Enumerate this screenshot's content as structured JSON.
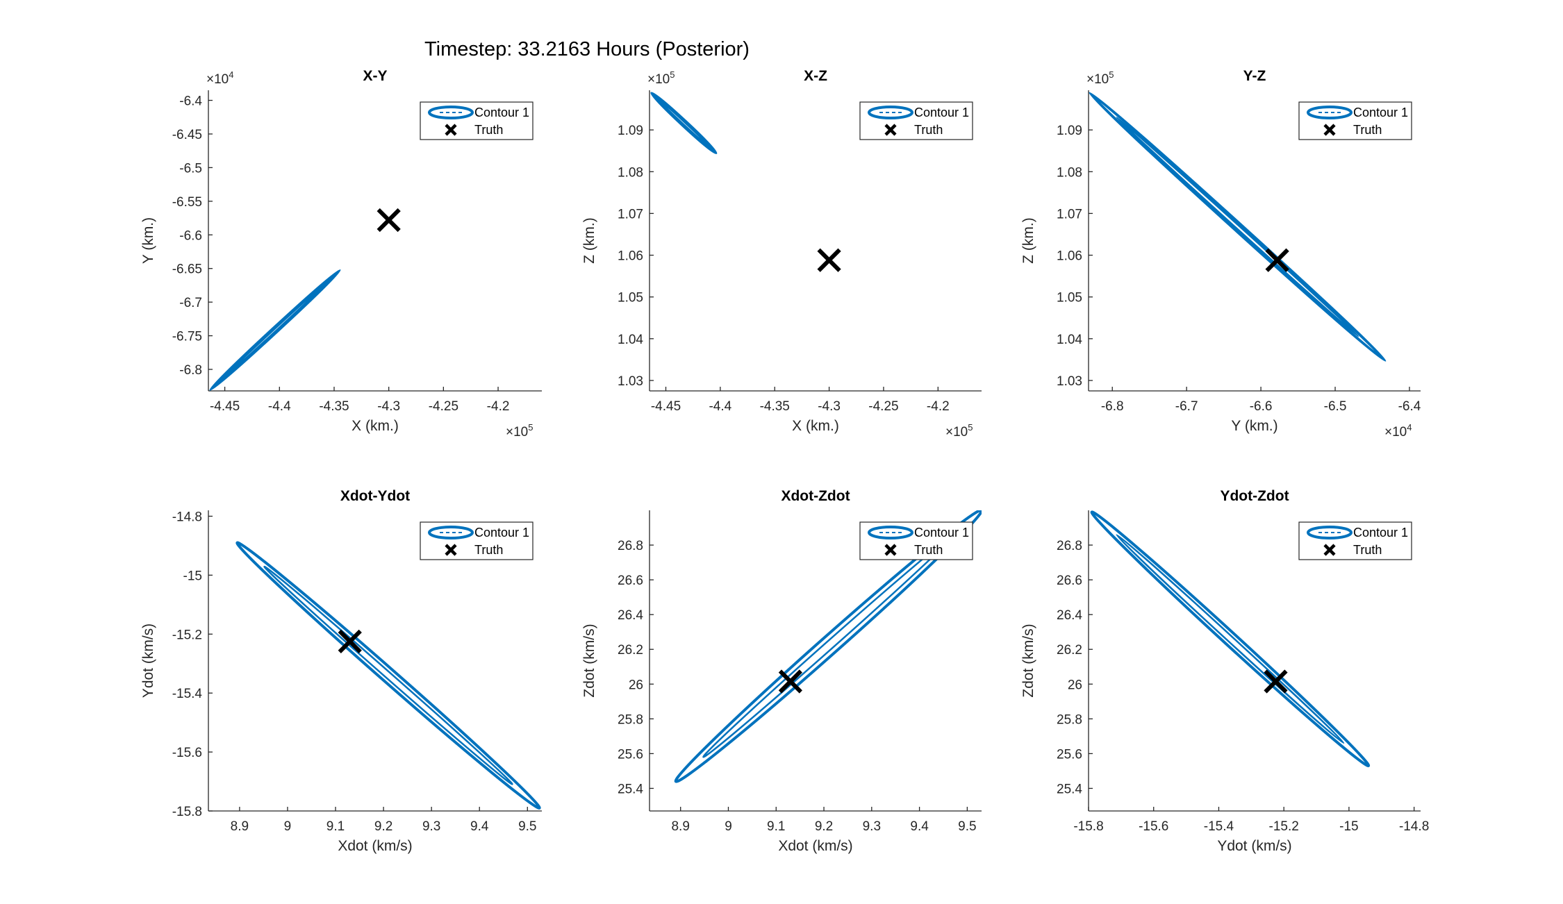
{
  "figure": {
    "title": "Timestep: 33.2163 Hours (Posterior)"
  },
  "legend": {
    "contour_label": "Contour 1",
    "truth_label": "Truth"
  },
  "colors": {
    "contour": "#0072BD",
    "truth": "#000000",
    "axes": "#262626"
  },
  "chart_data": [
    {
      "type": "line",
      "title": "X-Y",
      "xlabel": "X (km.)",
      "ylabel": "Y (km.)",
      "xlim": [
        -446500,
        -416000
      ],
      "ylim": [
        -68320,
        -63850
      ],
      "x_ticks": [
        -445000,
        -440000,
        -435000,
        -430000,
        -425000,
        -420000
      ],
      "x_tick_labels": [
        "-4.45",
        "-4.4",
        "-4.35",
        "-4.3",
        "-4.25",
        "-4.2"
      ],
      "y_ticks": [
        -68000,
        -67500,
        -67000,
        -66500,
        -66000,
        -65500,
        -65000,
        -64500,
        -64000
      ],
      "y_tick_labels": [
        "-6.8",
        "-6.75",
        "-6.7",
        "-6.65",
        "-6.6",
        "-6.55",
        "-6.5",
        "-6.45",
        "-6.4"
      ],
      "x_exponent": "×10",
      "x_exponent_power": "5",
      "y_exponent": "×10",
      "y_exponent_power": "4",
      "grid": false,
      "legend_position": "top-right",
      "series": [
        {
          "name": "Contour 1",
          "x": [
            -446300,
            -434500
          ],
          "y": [
            -68300,
            -66530
          ],
          "half_width": 55
        },
        {
          "name": "Truth",
          "x": [
            -430000
          ],
          "y": [
            -65780
          ]
        }
      ]
    },
    {
      "type": "line",
      "title": "X-Z",
      "xlabel": "X (km.)",
      "ylabel": "Z (km.)",
      "xlim": [
        -446500,
        -416000
      ],
      "ylim": [
        102750,
        109950
      ],
      "x_ticks": [
        -445000,
        -440000,
        -435000,
        -430000,
        -425000,
        -420000
      ],
      "x_tick_labels": [
        "-4.45",
        "-4.4",
        "-4.35",
        "-4.3",
        "-4.25",
        "-4.2"
      ],
      "y_ticks": [
        103000,
        104000,
        105000,
        106000,
        107000,
        108000,
        109000
      ],
      "y_tick_labels": [
        "1.03",
        "1.04",
        "1.05",
        "1.06",
        "1.07",
        "1.08",
        "1.09"
      ],
      "x_exponent": "×10",
      "x_exponent_power": "5",
      "y_exponent": "×10",
      "y_exponent_power": "5",
      "grid": false,
      "legend_position": "top-right",
      "series": [
        {
          "name": "Contour 1",
          "x": [
            -446300,
            -440400
          ],
          "y": [
            109880,
            108450
          ],
          "half_width": 45
        },
        {
          "name": "Truth",
          "x": [
            -430000
          ],
          "y": [
            105880
          ]
        }
      ]
    },
    {
      "type": "line",
      "title": "Y-Z",
      "xlabel": "Y (km.)",
      "ylabel": "Z (km.)",
      "xlim": [
        -68320,
        -63850
      ],
      "ylim": [
        102750,
        109950
      ],
      "x_ticks": [
        -68000,
        -67000,
        -66000,
        -65000,
        -64000
      ],
      "x_tick_labels": [
        "-6.8",
        "-6.7",
        "-6.6",
        "-6.5",
        "-6.4"
      ],
      "y_ticks": [
        103000,
        104000,
        105000,
        106000,
        107000,
        108000,
        109000
      ],
      "y_tick_labels": [
        "1.03",
        "1.04",
        "1.05",
        "1.06",
        "1.07",
        "1.08",
        "1.09"
      ],
      "x_exponent": "×10",
      "x_exponent_power": "4",
      "y_exponent": "×10",
      "y_exponent_power": "5",
      "grid": false,
      "legend_position": "top-right",
      "series": [
        {
          "name": "Contour 1",
          "x": [
            -68300,
            -64330
          ],
          "y": [
            109880,
            103480
          ],
          "half_width": 95
        },
        {
          "name": "Truth",
          "x": [
            -65780
          ],
          "y": [
            105880
          ]
        }
      ]
    },
    {
      "type": "line",
      "title": "Xdot-Ydot",
      "xlabel": "Xdot (km/s)",
      "ylabel": "Ydot (km/s)",
      "xlim": [
        8.835,
        9.53
      ],
      "ylim": [
        -15.8,
        -14.78
      ],
      "x_ticks": [
        8.9,
        9.0,
        9.1,
        9.2,
        9.3,
        9.4,
        9.5
      ],
      "x_tick_labels": [
        "8.9",
        "9",
        "9.1",
        "9.2",
        "9.3",
        "9.4",
        "9.5"
      ],
      "y_ticks": [
        -15.8,
        -15.6,
        -15.4,
        -15.2,
        -15.0,
        -14.8
      ],
      "y_tick_labels": [
        "-15.8",
        "-15.6",
        "-15.4",
        "-15.2",
        "-15",
        "-14.8"
      ],
      "grid": false,
      "legend_position": "top-right",
      "series": [
        {
          "name": "Contour 1",
          "x": [
            8.895,
            9.525
          ],
          "y": [
            -14.89,
            -15.79
          ],
          "half_width": 170
        },
        {
          "name": "Truth",
          "x": [
            9.13
          ],
          "y": [
            -15.225
          ]
        }
      ]
    },
    {
      "type": "line",
      "title": "Xdot-Zdot",
      "xlabel": "Xdot (km/s)",
      "ylabel": "Zdot (km/s)",
      "xlim": [
        8.835,
        9.53
      ],
      "ylim": [
        25.27,
        27.0
      ],
      "x_ticks": [
        8.9,
        9.0,
        9.1,
        9.2,
        9.3,
        9.4,
        9.5
      ],
      "x_tick_labels": [
        "8.9",
        "9",
        "9.1",
        "9.2",
        "9.3",
        "9.4",
        "9.5"
      ],
      "y_ticks": [
        25.4,
        25.6,
        25.8,
        26.0,
        26.2,
        26.4,
        26.6,
        26.8
      ],
      "y_tick_labels": [
        "25.4",
        "25.6",
        "25.8",
        "26",
        "26.2",
        "26.4",
        "26.6",
        "26.8"
      ],
      "grid": false,
      "legend_position": "top-right",
      "series": [
        {
          "name": "Contour 1",
          "x": [
            8.89,
            9.53
          ],
          "y": [
            25.44,
            27.0
          ],
          "half_width": 220
        },
        {
          "name": "Truth",
          "x": [
            9.13
          ],
          "y": [
            26.015
          ]
        }
      ]
    },
    {
      "type": "line",
      "title": "Ydot-Zdot",
      "xlabel": "Ydot (km/s)",
      "ylabel": "Zdot (km/s)",
      "xlim": [
        -15.8,
        -14.78
      ],
      "ylim": [
        25.27,
        27.0
      ],
      "x_ticks": [
        -15.8,
        -15.6,
        -15.4,
        -15.2,
        -15.0,
        -14.8
      ],
      "x_tick_labels": [
        "-15.8",
        "-15.6",
        "-15.4",
        "-15.2",
        "-15",
        "-14.8"
      ],
      "y_ticks": [
        25.4,
        25.6,
        25.8,
        26.0,
        26.2,
        26.4,
        26.6,
        26.8
      ],
      "y_tick_labels": [
        "25.4",
        "25.6",
        "25.8",
        "26",
        "26.2",
        "26.4",
        "26.6",
        "26.8"
      ],
      "grid": false,
      "legend_position": "top-right",
      "series": [
        {
          "name": "Contour 1",
          "x": [
            -15.79,
            -14.94
          ],
          "y": [
            26.99,
            25.53
          ],
          "half_width": 170
        },
        {
          "name": "Truth",
          "x": [
            -15.225
          ],
          "y": [
            26.015
          ]
        }
      ]
    }
  ]
}
